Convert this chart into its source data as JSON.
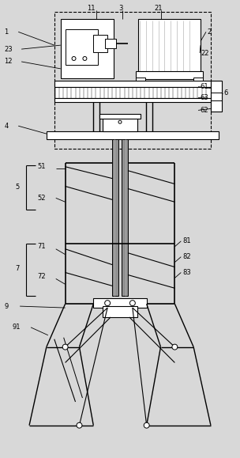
{
  "bg_color": "#d8d8d8",
  "line_color": "#000000",
  "gray_color": "#909090",
  "light_gray": "#b8b8b8",
  "white": "#ffffff"
}
